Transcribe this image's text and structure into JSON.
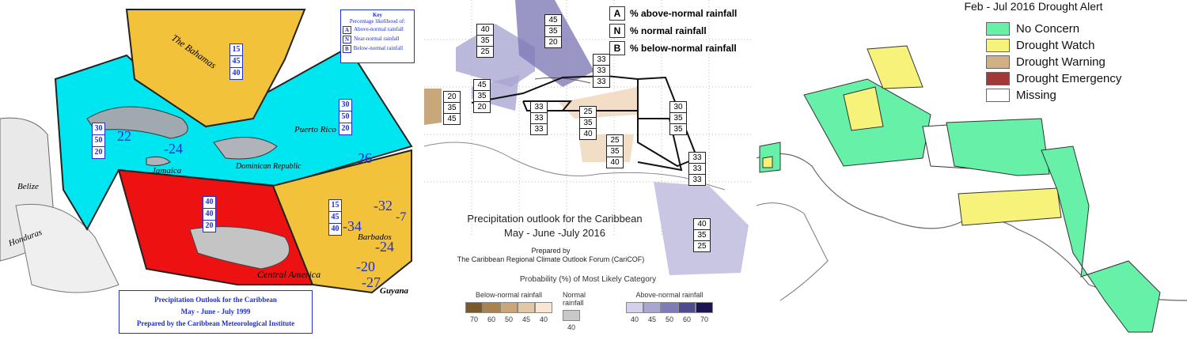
{
  "panel1": {
    "key_title": "Key",
    "key_subtitle": "Percentage likelihood of:",
    "key_rows": [
      {
        "letter": "A",
        "label": "Above-normal rainfall"
      },
      {
        "letter": "N",
        "label": "Near-normal rainfall"
      },
      {
        "letter": "B",
        "label": "Below-normal rainfall"
      }
    ],
    "zone_boxes": {
      "bahamas": [
        "15",
        "45",
        "40"
      ],
      "cuba": [
        "30",
        "50",
        "20"
      ],
      "east": [
        "30",
        "50",
        "20"
      ],
      "south": [
        "40",
        "40",
        "20"
      ],
      "southeast": [
        "15",
        "45",
        "40"
      ]
    },
    "anomalies": [
      "22",
      "-24",
      "26",
      "-32",
      "-7",
      "-34",
      "-24",
      "-20",
      "-27"
    ],
    "places": [
      "The Bahamas",
      "Puerto Rico",
      "Jamaica",
      "Dominican Republic",
      "Belize",
      "Honduras",
      "Barbados",
      "Central America",
      "Guyana"
    ],
    "title_lines": [
      "Precipitation Outlook for the Caribbean",
      "May - June - July  1999",
      "Prepared by the Caribbean Meteorological Institute"
    ],
    "colors": {
      "cyan": "#00e6f0",
      "yellow": "#f2c23a",
      "red": "#ee1111",
      "blue": "#1f2fd0"
    }
  },
  "panel2": {
    "legend": [
      {
        "letter": "A",
        "label": "% above-normal rainfall"
      },
      {
        "letter": "N",
        "label": "% normal rainfall"
      },
      {
        "letter": "B",
        "label": "% below-normal rainfall"
      }
    ],
    "boxes": [
      [
        "40",
        "35",
        "25"
      ],
      [
        "45",
        "35",
        "20"
      ],
      [
        "33",
        "33",
        "33"
      ],
      [
        "45",
        "35",
        "20"
      ],
      [
        "20",
        "35",
        "45"
      ],
      [
        "33",
        "33",
        "33"
      ],
      [
        "25",
        "35",
        "40"
      ],
      [
        "30",
        "35",
        "35"
      ],
      [
        "25",
        "35",
        "40"
      ],
      [
        "33",
        "33",
        "33"
      ],
      [
        "40",
        "35",
        "25"
      ]
    ],
    "title_lines": [
      "Precipitation outlook for the Caribbean",
      "May - June -July 2016"
    ],
    "prepared_lines": [
      "Prepared by",
      "The Caribbean Regional Climate Outlook Forum (CariCOF)"
    ],
    "colorbar_title": "Probability (%) of Most Likely Category",
    "colorbar_groups": [
      {
        "label": "Below-normal rainfall",
        "ticks": [
          "70",
          "60",
          "50",
          "45",
          "40"
        ],
        "colors": [
          "#7a5a2a",
          "#a88350",
          "#c8a77a",
          "#e0c8a6",
          "#f6e6d2"
        ]
      },
      {
        "label": "Normal rainfall",
        "ticks": [
          "40"
        ],
        "colors": [
          "#c8c8c8"
        ]
      },
      {
        "label": "Above-normal rainfall",
        "ticks": [
          "40",
          "45",
          "50",
          "60",
          "70"
        ],
        "colors": [
          "#d2d0ea",
          "#a9a6d2",
          "#7f7bb6",
          "#4f4a8e",
          "#1c1650"
        ]
      }
    ]
  },
  "panel3": {
    "title": "Feb - Jul 2016 Drought Alert",
    "legend": [
      {
        "label": "No Concern",
        "color": "#66f0a8"
      },
      {
        "label": "Drought Watch",
        "color": "#f6f27a"
      },
      {
        "label": "Drought Warning",
        "color": "#d2b086"
      },
      {
        "label": "Drought Emergency",
        "color": "#a03a3a"
      },
      {
        "label": "Missing",
        "color": "#ffffff"
      }
    ]
  }
}
